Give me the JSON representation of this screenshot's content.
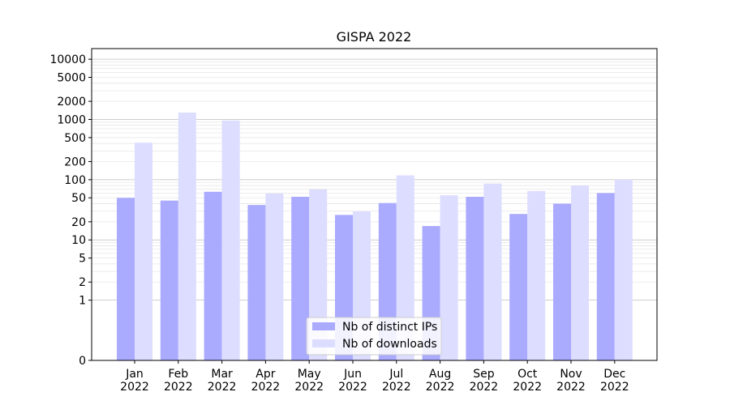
{
  "chart_data": {
    "type": "bar",
    "title": "GISPA 2022",
    "xlabel": "",
    "ylabel": "",
    "yscale": "symlog",
    "ylim": [
      0,
      15000
    ],
    "yticks": [
      0,
      1,
      2,
      5,
      10,
      20,
      50,
      100,
      200,
      500,
      1000,
      2000,
      5000,
      10000
    ],
    "grid": "horizontal",
    "legend_position": "bottom-center",
    "categories": [
      {
        "month": "Jan",
        "year": "2022"
      },
      {
        "month": "Feb",
        "year": "2022"
      },
      {
        "month": "Mar",
        "year": "2022"
      },
      {
        "month": "Apr",
        "year": "2022"
      },
      {
        "month": "May",
        "year": "2022"
      },
      {
        "month": "Jun",
        "year": "2022"
      },
      {
        "month": "Jul",
        "year": "2022"
      },
      {
        "month": "Aug",
        "year": "2022"
      },
      {
        "month": "Sep",
        "year": "2022"
      },
      {
        "month": "Oct",
        "year": "2022"
      },
      {
        "month": "Nov",
        "year": "2022"
      },
      {
        "month": "Dec",
        "year": "2022"
      }
    ],
    "series": [
      {
        "name": "Nb of distinct IPs",
        "color": "#aaaaff",
        "values": [
          50,
          45,
          63,
          38,
          52,
          26,
          41,
          17,
          52,
          27,
          40,
          60
        ]
      },
      {
        "name": "Nb of downloads",
        "color": "#ddddff",
        "values": [
          410,
          1300,
          960,
          59,
          69,
          30,
          118,
          55,
          86,
          65,
          80,
          100
        ]
      }
    ]
  }
}
